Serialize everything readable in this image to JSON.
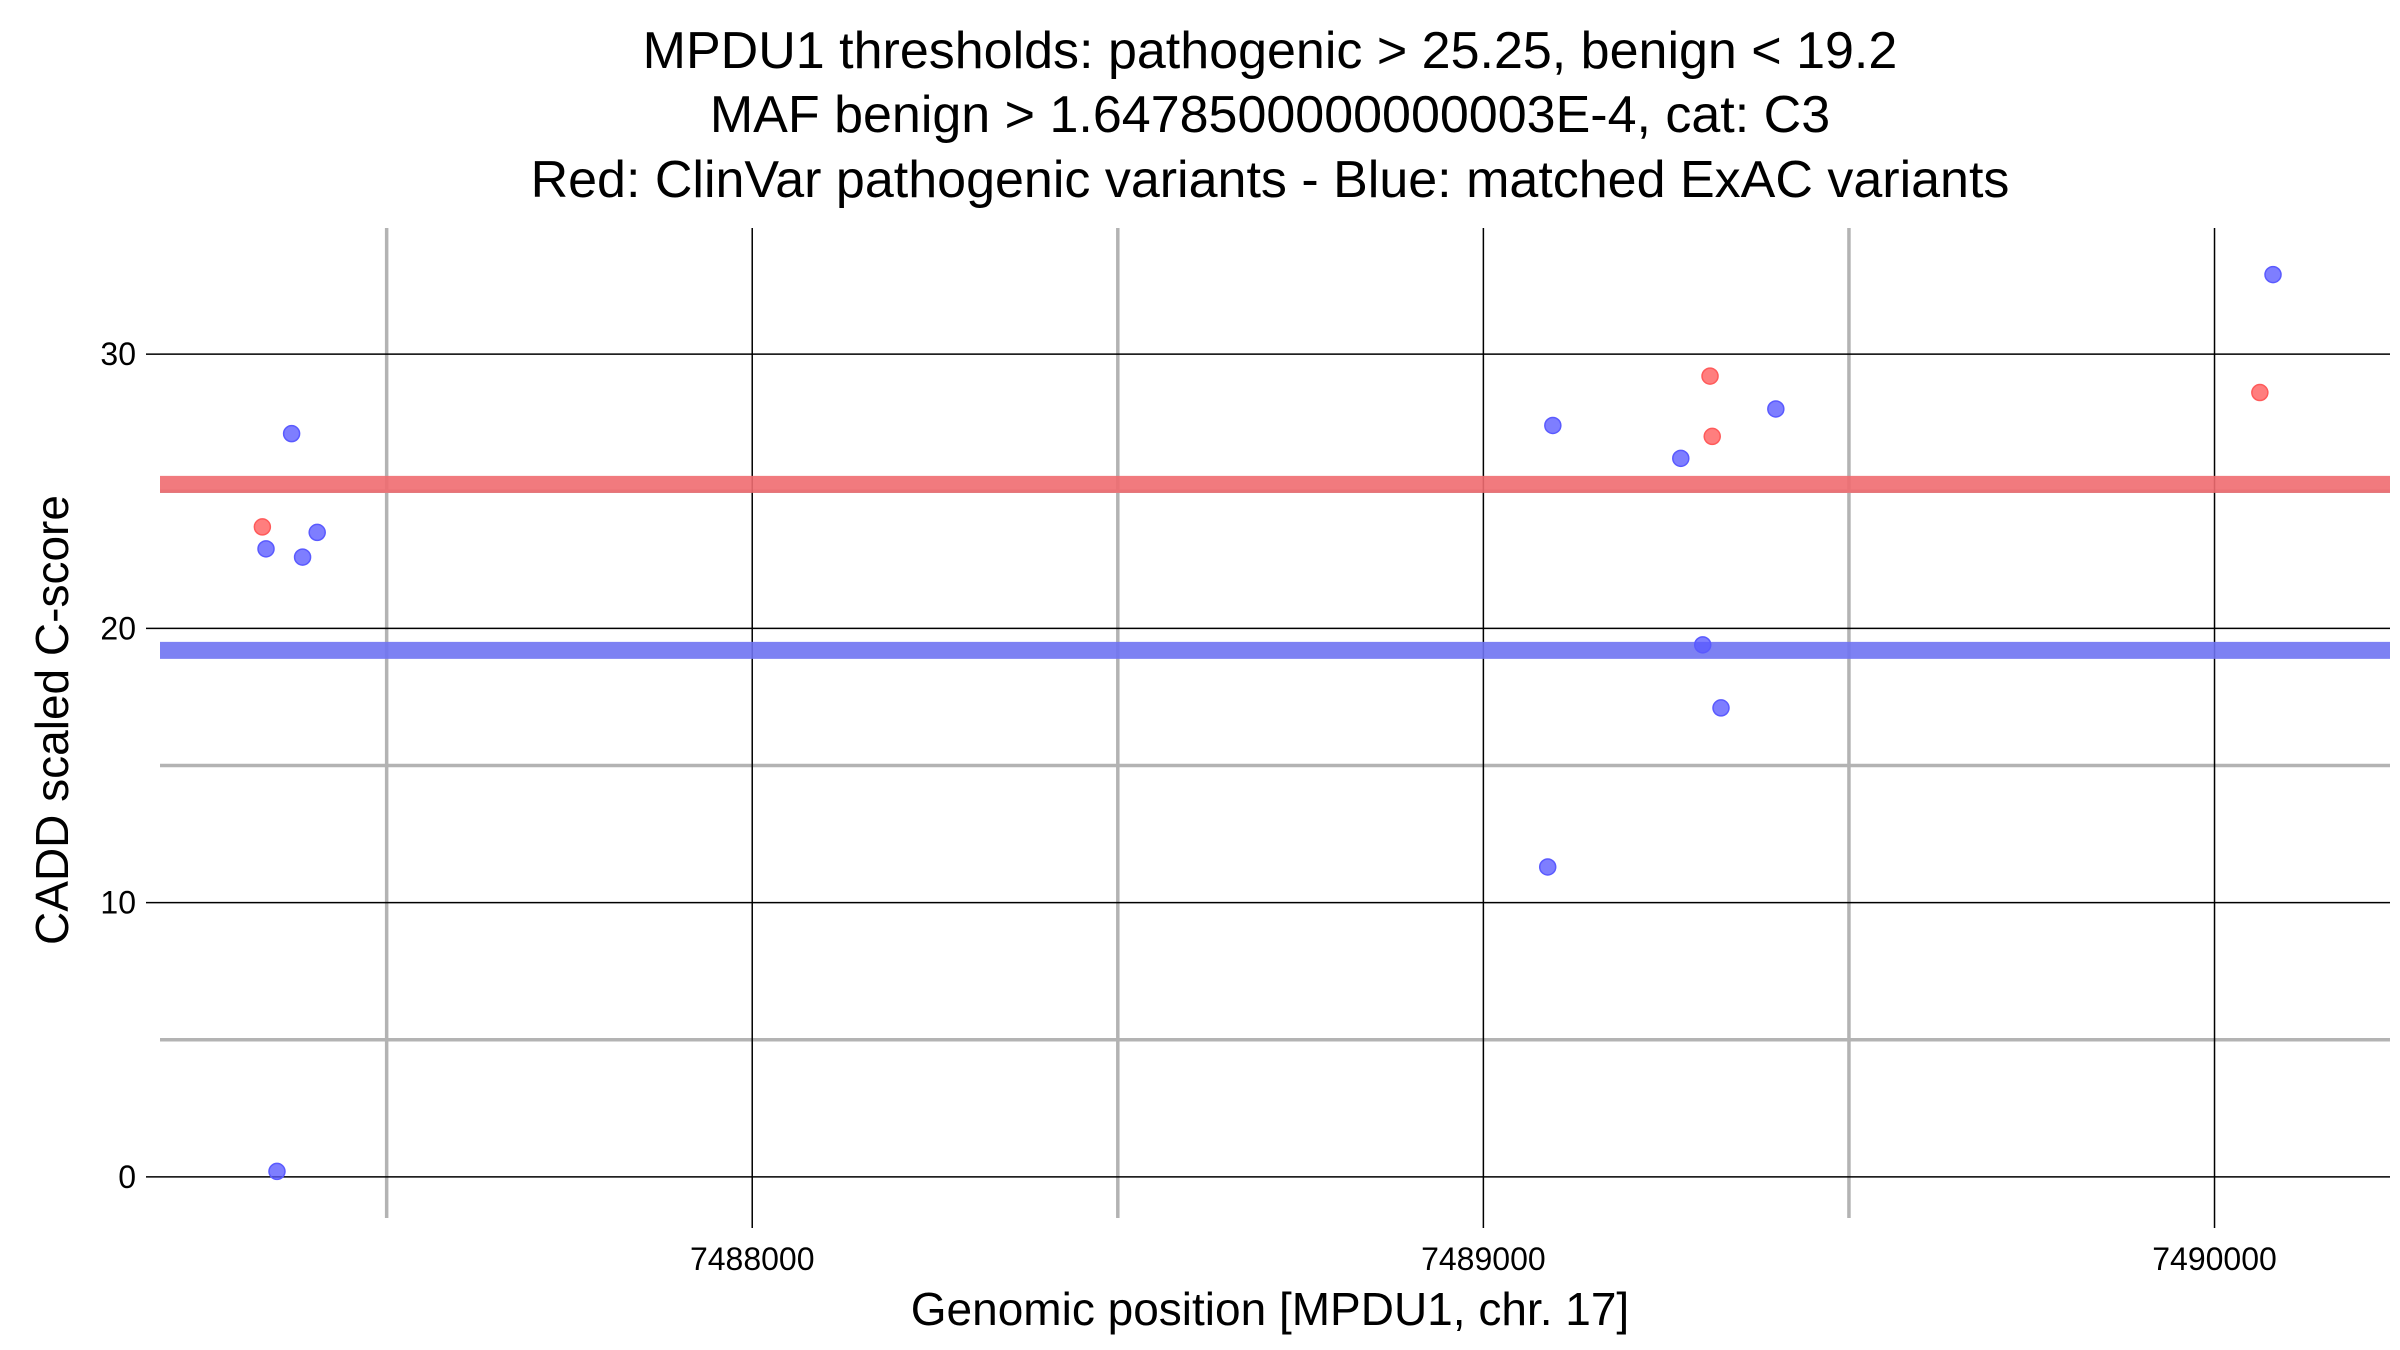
{
  "chart_data": {
    "type": "scatter",
    "title_lines": [
      "MPDU1 thresholds: pathogenic > 25.25, benign < 19.2",
      "MAF benign > 1.6478500000000003E-4, cat: C3",
      "Red: ClinVar pathogenic variants - Blue: matched ExAC variants"
    ],
    "xlabel": "Genomic position [MPDU1, chr. 17]",
    "ylabel": "CADD scaled C-score",
    "xlim": [
      7487190,
      7490240
    ],
    "ylim": [
      -1.5,
      34.6
    ],
    "x_ticks": [
      7488000,
      7489000,
      7490000
    ],
    "x_tick_labels": [
      "7488000",
      "7489000",
      "7490000"
    ],
    "x_minor_grid": [
      7487500,
      7488500,
      7489500
    ],
    "y_ticks": [
      0,
      10,
      20,
      30
    ],
    "y_tick_labels": [
      "0",
      "10",
      "20",
      "30"
    ],
    "y_minor_grid": [
      5,
      15,
      25
    ],
    "thresholds": [
      {
        "name": "pathogenic",
        "value": 25.25,
        "color": "#f06b70"
      },
      {
        "name": "benign",
        "value": 19.2,
        "color": "#6f73f2"
      }
    ],
    "series": [
      {
        "name": "ClinVar pathogenic variants",
        "color": "#ff5a5a",
        "points": [
          {
            "x": 7487330,
            "y": 23.7
          },
          {
            "x": 7489310,
            "y": 29.2
          },
          {
            "x": 7489313,
            "y": 27.0
          },
          {
            "x": 7490062,
            "y": 28.6
          }
        ]
      },
      {
        "name": "matched ExAC variants",
        "color": "#5a5aff",
        "points": [
          {
            "x": 7487335,
            "y": 22.9
          },
          {
            "x": 7487350,
            "y": 0.2
          },
          {
            "x": 7487370,
            "y": 27.1
          },
          {
            "x": 7487385,
            "y": 22.6
          },
          {
            "x": 7487405,
            "y": 23.5
          },
          {
            "x": 7489088,
            "y": 11.3
          },
          {
            "x": 7489095,
            "y": 27.4
          },
          {
            "x": 7489270,
            "y": 26.2
          },
          {
            "x": 7489300,
            "y": 19.4
          },
          {
            "x": 7489325,
            "y": 17.1
          },
          {
            "x": 7489400,
            "y": 28.0
          },
          {
            "x": 7490080,
            "y": 32.9
          }
        ]
      }
    ]
  }
}
